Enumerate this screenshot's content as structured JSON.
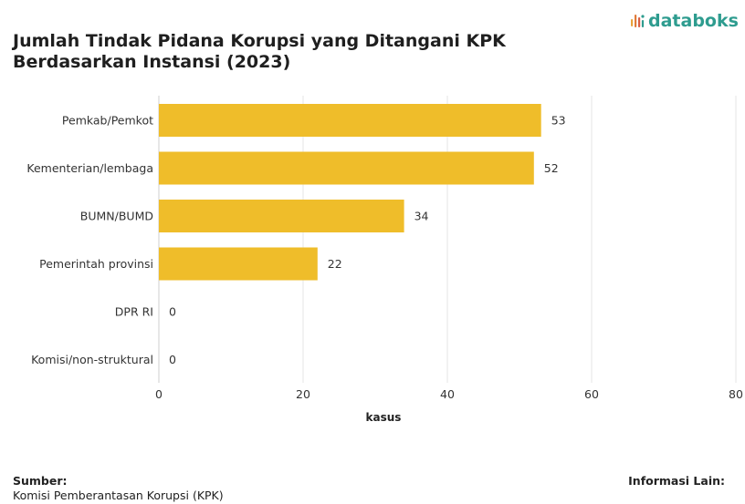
{
  "brand": {
    "name": "databoks",
    "accent": "#2e9c8f"
  },
  "chart_data": {
    "type": "bar",
    "orientation": "horizontal",
    "title_lines": [
      "Jumlah Tindak Pidana Korupsi yang Ditangani KPK",
      "Berdasarkan Instansi (2023)"
    ],
    "categories": [
      "Pemkab/Pemkot",
      "Kementerian/lembaga",
      "BUMN/BUMD",
      "Pemerintah provinsi",
      "DPR RI",
      "Komisi/non-struktural"
    ],
    "values": [
      53,
      52,
      34,
      22,
      0,
      0
    ],
    "data_labels": [
      "53",
      "52",
      "34",
      "22",
      "0",
      "0"
    ],
    "xlabel": "kasus",
    "xlim": [
      0,
      80
    ],
    "xticks": [
      0,
      20,
      40,
      60,
      80
    ],
    "xtick_labels": [
      "0",
      "20",
      "40",
      "60",
      "80"
    ],
    "grid": true,
    "bar_color": "#efbd2a"
  },
  "footer": {
    "source_label": "Sumber:",
    "source_value": "Komisi Pemberantasan Korupsi (KPK)",
    "info_label": "Informasi Lain:"
  }
}
